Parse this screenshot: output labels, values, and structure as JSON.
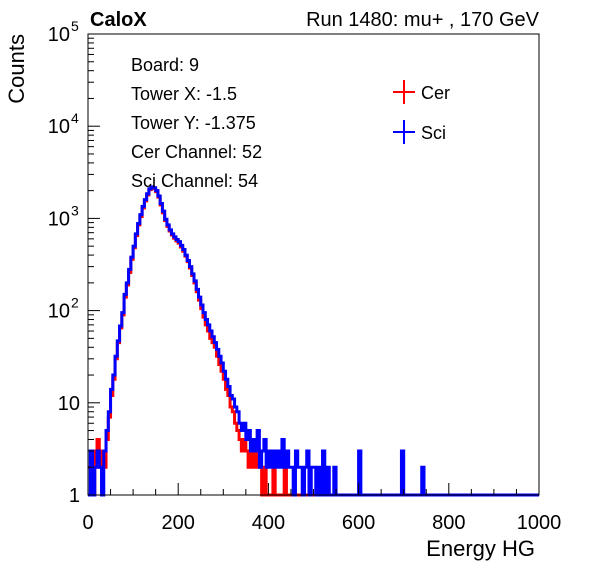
{
  "header": {
    "left_label": "CaloX",
    "right_label": "Run 1480: mu+ , 170 GeV"
  },
  "info_box": {
    "lines": [
      "Board: 9",
      "Tower X: -1.5",
      "Tower Y: -1.375",
      "Cer Channel: 52",
      "Sci Channel: 54"
    ]
  },
  "chart_data": {
    "type": "line",
    "xlabel": "Energy HG",
    "ylabel": "Counts",
    "xlim": [
      0,
      1000
    ],
    "ylim": [
      1,
      100000
    ],
    "y_scale": "log",
    "x_ticks": [
      "0",
      "200",
      "400",
      "600",
      "800",
      "1000"
    ],
    "y_ticks": [
      {
        "value": 1,
        "label": "1"
      },
      {
        "value": 10,
        "label": "10"
      },
      {
        "value": 100,
        "label": "10",
        "exp": "2"
      },
      {
        "value": 1000,
        "label": "10",
        "exp": "3"
      },
      {
        "value": 10000,
        "label": "10",
        "exp": "4"
      },
      {
        "value": 100000,
        "label": "10",
        "exp": "5"
      }
    ],
    "legend_position": "top-right",
    "series": [
      {
        "name": "Cer",
        "color": "#ff0000",
        "points": [
          [
            0,
            2
          ],
          [
            5,
            2
          ],
          [
            10,
            1
          ],
          [
            15,
            3
          ],
          [
            20,
            4
          ],
          [
            25,
            2
          ],
          [
            30,
            3
          ],
          [
            35,
            2
          ],
          [
            40,
            4
          ],
          [
            45,
            7
          ],
          [
            50,
            12
          ],
          [
            55,
            18
          ],
          [
            60,
            30
          ],
          [
            65,
            45
          ],
          [
            70,
            65
          ],
          [
            75,
            90
          ],
          [
            80,
            140
          ],
          [
            85,
            190
          ],
          [
            90,
            260
          ],
          [
            95,
            360
          ],
          [
            100,
            480
          ],
          [
            105,
            650
          ],
          [
            110,
            850
          ],
          [
            115,
            1050
          ],
          [
            120,
            1300
          ],
          [
            125,
            1550
          ],
          [
            130,
            1800
          ],
          [
            135,
            2050
          ],
          [
            140,
            2150
          ],
          [
            145,
            2100
          ],
          [
            150,
            1950
          ],
          [
            155,
            1700
          ],
          [
            160,
            1400
          ],
          [
            165,
            1150
          ],
          [
            170,
            950
          ],
          [
            175,
            820
          ],
          [
            180,
            730
          ],
          [
            185,
            660
          ],
          [
            190,
            610
          ],
          [
            195,
            570
          ],
          [
            200,
            540
          ],
          [
            205,
            490
          ],
          [
            210,
            440
          ],
          [
            215,
            390
          ],
          [
            220,
            340
          ],
          [
            225,
            290
          ],
          [
            230,
            240
          ],
          [
            235,
            200
          ],
          [
            240,
            160
          ],
          [
            245,
            130
          ],
          [
            250,
            105
          ],
          [
            255,
            85
          ],
          [
            260,
            70
          ],
          [
            265,
            60
          ],
          [
            270,
            50
          ],
          [
            275,
            45
          ],
          [
            280,
            40
          ],
          [
            285,
            32
          ],
          [
            290,
            26
          ],
          [
            295,
            22
          ],
          [
            300,
            18
          ],
          [
            305,
            14
          ],
          [
            310,
            12
          ],
          [
            315,
            9
          ],
          [
            320,
            8
          ],
          [
            325,
            6
          ],
          [
            330,
            5
          ],
          [
            335,
            4
          ],
          [
            340,
            3
          ],
          [
            345,
            4
          ],
          [
            350,
            3
          ],
          [
            355,
            2
          ],
          [
            360,
            3
          ],
          [
            365,
            2
          ],
          [
            370,
            3
          ],
          [
            375,
            2
          ],
          [
            380,
            2
          ],
          [
            385,
            1
          ],
          [
            390,
            2
          ],
          [
            395,
            1
          ],
          [
            400,
            1
          ],
          [
            405,
            1
          ],
          [
            410,
            2
          ],
          [
            415,
            1
          ],
          [
            420,
            1
          ],
          [
            425,
            1
          ],
          [
            430,
            1
          ],
          [
            435,
            2
          ],
          [
            440,
            1
          ],
          [
            445,
            1
          ],
          [
            450,
            1
          ],
          [
            455,
            1
          ],
          [
            460,
            1
          ],
          [
            465,
            1
          ],
          [
            470,
            1
          ],
          [
            1000,
            1
          ]
        ]
      },
      {
        "name": "Sci",
        "color": "#0000ff",
        "points": [
          [
            0,
            1
          ],
          [
            5,
            3
          ],
          [
            10,
            1
          ],
          [
            15,
            2
          ],
          [
            20,
            3
          ],
          [
            25,
            2
          ],
          [
            30,
            1
          ],
          [
            35,
            3
          ],
          [
            40,
            5
          ],
          [
            45,
            8
          ],
          [
            50,
            14
          ],
          [
            55,
            20
          ],
          [
            60,
            32
          ],
          [
            65,
            47
          ],
          [
            70,
            68
          ],
          [
            75,
            95
          ],
          [
            80,
            150
          ],
          [
            85,
            200
          ],
          [
            90,
            280
          ],
          [
            95,
            380
          ],
          [
            100,
            500
          ],
          [
            105,
            680
          ],
          [
            110,
            880
          ],
          [
            115,
            1100
          ],
          [
            120,
            1350
          ],
          [
            125,
            1600
          ],
          [
            130,
            1850
          ],
          [
            135,
            2100
          ],
          [
            140,
            2200
          ],
          [
            145,
            2150
          ],
          [
            150,
            2000
          ],
          [
            155,
            1750
          ],
          [
            160,
            1450
          ],
          [
            165,
            1200
          ],
          [
            170,
            980
          ],
          [
            175,
            850
          ],
          [
            180,
            750
          ],
          [
            185,
            680
          ],
          [
            190,
            630
          ],
          [
            195,
            590
          ],
          [
            200,
            560
          ],
          [
            205,
            510
          ],
          [
            210,
            460
          ],
          [
            215,
            400
          ],
          [
            220,
            350
          ],
          [
            225,
            300
          ],
          [
            230,
            250
          ],
          [
            235,
            210
          ],
          [
            240,
            170
          ],
          [
            245,
            140
          ],
          [
            250,
            115
          ],
          [
            255,
            95
          ],
          [
            260,
            80
          ],
          [
            265,
            70
          ],
          [
            270,
            60
          ],
          [
            275,
            52
          ],
          [
            280,
            45
          ],
          [
            285,
            38
          ],
          [
            290,
            32
          ],
          [
            295,
            27
          ],
          [
            300,
            22
          ],
          [
            305,
            18
          ],
          [
            310,
            15
          ],
          [
            315,
            12
          ],
          [
            320,
            11
          ],
          [
            325,
            9
          ],
          [
            330,
            8
          ],
          [
            335,
            6
          ],
          [
            340,
            5
          ],
          [
            345,
            6
          ],
          [
            350,
            4
          ],
          [
            355,
            5
          ],
          [
            360,
            3
          ],
          [
            365,
            4
          ],
          [
            370,
            3
          ],
          [
            375,
            5
          ],
          [
            380,
            2
          ],
          [
            385,
            3
          ],
          [
            390,
            4
          ],
          [
            395,
            2
          ],
          [
            400,
            3
          ],
          [
            405,
            2
          ],
          [
            410,
            3
          ],
          [
            415,
            2
          ],
          [
            420,
            3
          ],
          [
            425,
            2
          ],
          [
            430,
            4
          ],
          [
            435,
            2
          ],
          [
            440,
            3
          ],
          [
            445,
            2
          ],
          [
            450,
            2
          ],
          [
            455,
            1
          ],
          [
            460,
            3
          ],
          [
            465,
            2
          ],
          [
            470,
            2
          ],
          [
            475,
            1
          ],
          [
            480,
            2
          ],
          [
            485,
            3
          ],
          [
            490,
            1
          ],
          [
            495,
            2
          ],
          [
            500,
            2
          ],
          [
            505,
            1
          ],
          [
            510,
            2
          ],
          [
            515,
            1
          ],
          [
            520,
            3
          ],
          [
            525,
            1
          ],
          [
            530,
            2
          ],
          [
            535,
            1
          ],
          [
            540,
            1
          ],
          [
            545,
            2
          ],
          [
            550,
            1
          ],
          [
            555,
            1
          ],
          [
            560,
            1
          ],
          [
            565,
            1
          ],
          [
            570,
            1
          ],
          [
            575,
            1
          ],
          [
            580,
            1
          ],
          [
            585,
            1
          ],
          [
            590,
            1
          ],
          [
            595,
            1
          ],
          [
            600,
            3
          ],
          [
            605,
            1
          ],
          [
            610,
            1
          ],
          [
            615,
            1
          ],
          [
            620,
            1
          ],
          [
            625,
            1
          ],
          [
            630,
            1
          ],
          [
            635,
            1
          ],
          [
            640,
            1
          ],
          [
            645,
            1
          ],
          [
            650,
            1
          ],
          [
            655,
            1
          ],
          [
            660,
            1
          ],
          [
            665,
            1
          ],
          [
            670,
            1
          ],
          [
            675,
            1
          ],
          [
            680,
            1
          ],
          [
            685,
            1
          ],
          [
            690,
            1
          ],
          [
            695,
            3
          ],
          [
            700,
            1
          ],
          [
            705,
            1
          ],
          [
            710,
            1
          ],
          [
            715,
            1
          ],
          [
            720,
            1
          ],
          [
            725,
            1
          ],
          [
            730,
            1
          ],
          [
            735,
            1
          ],
          [
            740,
            2
          ],
          [
            745,
            1
          ],
          [
            1000,
            1
          ]
        ]
      }
    ]
  }
}
